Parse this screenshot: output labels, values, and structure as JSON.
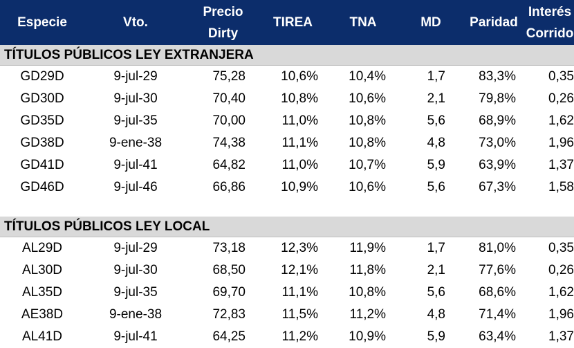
{
  "columns": {
    "especie": "Especie",
    "vto": "Vto.",
    "precio_line1": "Precio",
    "precio_line2": "Dirty",
    "tirea": "TIREA",
    "tna": "TNA",
    "md": "MD",
    "paridad": "Paridad",
    "interes_line1": "Interés",
    "interes_line2": "Corrido"
  },
  "sections": [
    {
      "title": "TÍTULOS PÚBLICOS LEY EXTRANJERA",
      "rows": [
        {
          "especie": "GD29D",
          "vto": "9-jul-29",
          "precio": "75,28",
          "tirea": "10,6%",
          "tna": "10,4%",
          "md": "1,7",
          "paridad": "83,3%",
          "interes": "0,35"
        },
        {
          "especie": "GD30D",
          "vto": "9-jul-30",
          "precio": "70,40",
          "tirea": "10,8%",
          "tna": "10,6%",
          "md": "2,1",
          "paridad": "79,8%",
          "interes": "0,26"
        },
        {
          "especie": "GD35D",
          "vto": "9-jul-35",
          "precio": "70,00",
          "tirea": "11,0%",
          "tna": "10,8%",
          "md": "5,6",
          "paridad": "68,9%",
          "interes": "1,62"
        },
        {
          "especie": "GD38D",
          "vto": "9-ene-38",
          "precio": "74,38",
          "tirea": "11,1%",
          "tna": "10,8%",
          "md": "4,8",
          "paridad": "73,0%",
          "interes": "1,96"
        },
        {
          "especie": "GD41D",
          "vto": "9-jul-41",
          "precio": "64,82",
          "tirea": "11,0%",
          "tna": "10,7%",
          "md": "5,9",
          "paridad": "63,9%",
          "interes": "1,37"
        },
        {
          "especie": "GD46D",
          "vto": "9-jul-46",
          "precio": "66,86",
          "tirea": "10,9%",
          "tna": "10,6%",
          "md": "5,6",
          "paridad": "67,3%",
          "interes": "1,58"
        }
      ]
    },
    {
      "title": "TÍTULOS PÚBLICOS LEY LOCAL",
      "rows": [
        {
          "especie": "AL29D",
          "vto": "9-jul-29",
          "precio": "73,18",
          "tirea": "12,3%",
          "tna": "11,9%",
          "md": "1,7",
          "paridad": "81,0%",
          "interes": "0,35"
        },
        {
          "especie": "AL30D",
          "vto": "9-jul-30",
          "precio": "68,50",
          "tirea": "12,1%",
          "tna": "11,8%",
          "md": "2,1",
          "paridad": "77,6%",
          "interes": "0,26"
        },
        {
          "especie": "AL35D",
          "vto": "9-jul-35",
          "precio": "69,70",
          "tirea": "11,1%",
          "tna": "10,8%",
          "md": "5,6",
          "paridad": "68,6%",
          "interes": "1,62"
        },
        {
          "especie": "AE38D",
          "vto": "9-ene-38",
          "precio": "72,83",
          "tirea": "11,5%",
          "tna": "11,2%",
          "md": "4,8",
          "paridad": "71,4%",
          "interes": "1,96"
        },
        {
          "especie": "AL41D",
          "vto": "9-jul-41",
          "precio": "64,25",
          "tirea": "11,2%",
          "tna": "10,9%",
          "md": "5,9",
          "paridad": "63,4%",
          "interes": "1,37"
        }
      ]
    }
  ],
  "colors": {
    "header_bg": "#0c2d6b",
    "header_text": "#ffffff",
    "section_bg": "#d9d9d9"
  }
}
